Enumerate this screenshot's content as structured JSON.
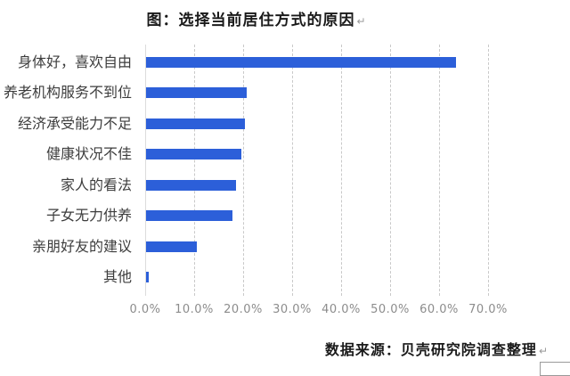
{
  "title": {
    "text": "图：选择当前居住方式的原因",
    "return_mark": "↵"
  },
  "chart_data": {
    "type": "bar",
    "orientation": "horizontal",
    "title": "图：选择当前居住方式的原因",
    "categories": [
      "身体好，喜欢自由",
      "养老机构服务不到位",
      "经济承受能力不足",
      "健康状况不佳",
      "家人的看法",
      "子女无力供养",
      "亲朋好友的建议",
      "其他"
    ],
    "values": [
      63.3,
      20.5,
      20.1,
      19.4,
      18.4,
      17.7,
      10.4,
      0.6
    ],
    "value_unit": "%",
    "xlabel": "",
    "ylabel": "",
    "x_ticks": [
      "0.0%",
      "10.0%",
      "20.0%",
      "30.0%",
      "40.0%",
      "50.0%",
      "60.0%",
      "70.0%"
    ],
    "x_tick_values": [
      0,
      10,
      20,
      30,
      40,
      50,
      60,
      70
    ],
    "xlim": [
      0,
      74.5
    ],
    "grid": "vertical-dashed",
    "legend": "none"
  },
  "source": {
    "text": "数据来源：贝壳研究院调查整理",
    "return_mark": "↵"
  },
  "colors": {
    "bar": "#2c5fd9",
    "grid": "#c9c9c9",
    "tick_text": "#8c8c8c",
    "category_text": "#3d3d3d",
    "title_text": "#1a1a1a",
    "background": "#ffffff"
  }
}
